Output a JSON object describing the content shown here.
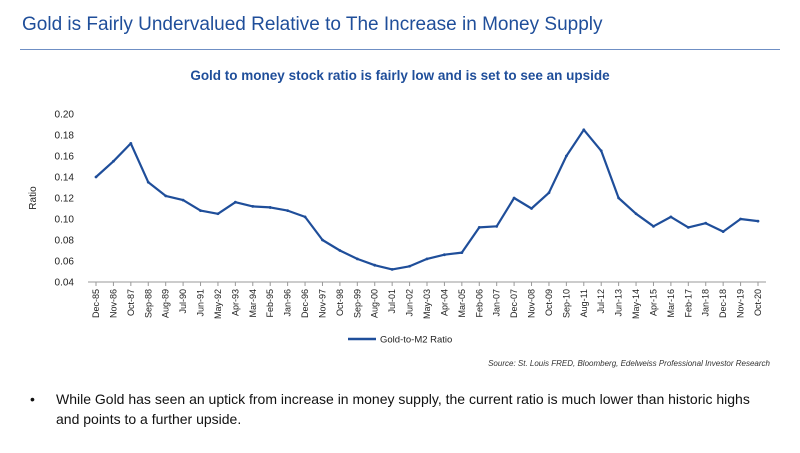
{
  "slide": {
    "title": "Gold is Fairly Undervalued Relative to The Increase in Money Supply"
  },
  "source_note": "Source: St. Louis FRED, Bloomberg, Edelweiss Professional Investor Research",
  "bullets": [
    "While Gold has seen an uptick from increase in money supply, the current ratio is much lower than historic highs and points to a further upside."
  ],
  "colors": {
    "accent": "#1f4e9a",
    "series": "#1f4e9a"
  },
  "chart_data": {
    "type": "line",
    "title": "Gold to money stock ratio is fairly low and is set to see an upside",
    "xlabel": "",
    "ylabel": "Ratio",
    "ylim": [
      0.04,
      0.2
    ],
    "yticks": [
      "0.04",
      "0.06",
      "0.08",
      "0.10",
      "0.12",
      "0.14",
      "0.16",
      "0.18",
      "0.20"
    ],
    "x_tick_labels": [
      "Dec-85",
      "Nov-86",
      "Oct-87",
      "Sep-88",
      "Aug-89",
      "Jul-90",
      "Jun-91",
      "May-92",
      "Apr-93",
      "Mar-94",
      "Feb-95",
      "Jan-96",
      "Dec-96",
      "Nov-97",
      "Oct-98",
      "Sep-99",
      "Aug-00",
      "Jul-01",
      "Jun-02",
      "May-03",
      "Apr-04",
      "Mar-05",
      "Feb-06",
      "Jan-07",
      "Dec-07",
      "Nov-08",
      "Oct-09",
      "Sep-10",
      "Aug-11",
      "Jul-12",
      "Jun-13",
      "May-14",
      "Apr-15",
      "Mar-16",
      "Feb-17",
      "Jan-18",
      "Dec-18",
      "Nov-19",
      "Oct-20"
    ],
    "grid": false,
    "legend_position": "bottom",
    "series": [
      {
        "name": "Gold-to-M2 Ratio",
        "x": [
          "Dec-85",
          "Nov-86",
          "Oct-87",
          "Sep-88",
          "Aug-89",
          "Jul-90",
          "Jun-91",
          "May-92",
          "Apr-93",
          "Mar-94",
          "Feb-95",
          "Jan-96",
          "Dec-96",
          "Nov-97",
          "Oct-98",
          "Sep-99",
          "Aug-00",
          "Jul-01",
          "Jun-02",
          "May-03",
          "Apr-04",
          "Mar-05",
          "Feb-06",
          "Jan-07",
          "Dec-07",
          "Nov-08",
          "Oct-09",
          "Sep-10",
          "Aug-11",
          "Jul-12",
          "Jun-13",
          "May-14",
          "Apr-15",
          "Mar-16",
          "Feb-17",
          "Jan-18",
          "Dec-18",
          "Nov-19",
          "Oct-20"
        ],
        "values": [
          0.14,
          0.155,
          0.172,
          0.135,
          0.122,
          0.118,
          0.108,
          0.105,
          0.116,
          0.112,
          0.111,
          0.108,
          0.102,
          0.08,
          0.07,
          0.062,
          0.056,
          0.052,
          0.055,
          0.062,
          0.066,
          0.068,
          0.092,
          0.093,
          0.12,
          0.11,
          0.125,
          0.16,
          0.185,
          0.165,
          0.12,
          0.105,
          0.093,
          0.102,
          0.092,
          0.096,
          0.088,
          0.1,
          0.098
        ]
      }
    ]
  }
}
